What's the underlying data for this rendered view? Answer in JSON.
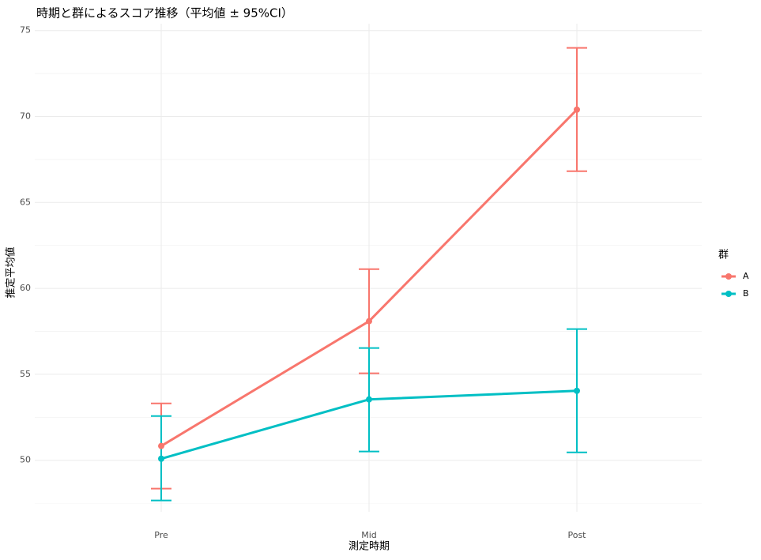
{
  "chart_data": {
    "type": "line",
    "title": "時期と群によるスコア推移（平均値 ± 95%CI）",
    "x_label": "測定時期",
    "y_label": "推定平均値",
    "categories": [
      "Pre",
      "Mid",
      "Post"
    ],
    "series": [
      {
        "name": "A",
        "color": "#F8766D",
        "values": [
          50.83,
          58.09,
          70.4
        ],
        "lower": [
          48.35,
          55.06,
          66.82
        ],
        "upper": [
          53.31,
          61.12,
          73.99
        ]
      },
      {
        "name": "B",
        "color": "#00BFC4",
        "values": [
          50.09,
          53.54,
          54.04
        ],
        "lower": [
          47.66,
          50.51,
          50.46
        ],
        "upper": [
          52.57,
          56.53,
          57.63
        ]
      }
    ],
    "legend_title": "群",
    "legend_position": "right",
    "ylim": [
      47.0,
      75.4
    ],
    "yticks": [
      50,
      55,
      60,
      65,
      70,
      75
    ],
    "grid": true
  }
}
